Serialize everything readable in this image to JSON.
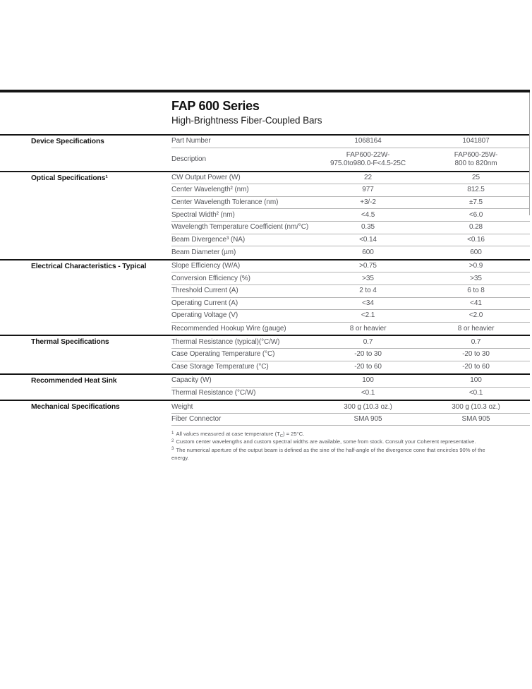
{
  "header": {
    "title": "FAP 600 Series",
    "subtitle": "High-Brightness Fiber-Coupled Bars"
  },
  "table": {
    "sections": [
      {
        "label": "Device Specifications",
        "rows": [
          {
            "param": "Part Number",
            "v1": "1068164",
            "v2": "1041807"
          },
          {
            "param": "Description",
            "v1": "FAP600-22W-\n975.0to980.0-F<4.5-25C",
            "v2": "FAP600-25W-\n800 to 820nm",
            "tall": true
          }
        ]
      },
      {
        "label": "Optical Specifications¹",
        "rows": [
          {
            "param": "CW Output Power (W)",
            "v1": "22",
            "v2": "25"
          },
          {
            "param": "Center Wavelength² (nm)",
            "v1": "977",
            "v2": "812.5"
          },
          {
            "param": "Center Wavelength Tolerance (nm)",
            "v1": "+3/-2",
            "v2": "±7.5"
          },
          {
            "param": "Spectral Width² (nm)",
            "v1": "<4.5",
            "v2": "<6.0"
          },
          {
            "param": "Wavelength Temperature Coefficient (nm/°C)",
            "v1": "0.35",
            "v2": "0.28"
          },
          {
            "param": "Beam Divergence³ (NA)",
            "v1": "<0.14",
            "v2": "<0.16"
          },
          {
            "param": "Beam Diameter (µm)",
            "v1": "600",
            "v2": "600"
          }
        ]
      },
      {
        "label": "Electrical Characteristics - Typical",
        "rows": [
          {
            "param": "Slope Efficiency (W/A)",
            "v1": ">0.75",
            "v2": ">0.9"
          },
          {
            "param": "Conversion Efficiency (%)",
            "v1": ">35",
            "v2": ">35"
          },
          {
            "param": "Threshold Current (A)",
            "v1": "2 to 4",
            "v2": "6 to 8"
          },
          {
            "param": "Operating Current (A)",
            "v1": "<34",
            "v2": "<41"
          },
          {
            "param": "Operating Voltage (V)",
            "v1": "<2.1",
            "v2": "<2.0"
          },
          {
            "param": "Recommended Hookup Wire (gauge)",
            "v1": "8 or heavier",
            "v2": "8 or heavier"
          }
        ]
      },
      {
        "label": "Thermal Specifications",
        "rows": [
          {
            "param": "Thermal Resistance (typical)(°C/W)",
            "v1": "0.7",
            "v2": "0.7"
          },
          {
            "param": "Case Operating Temperature (°C)",
            "v1": "-20 to 30",
            "v2": "-20 to 30"
          },
          {
            "param": "Case Storage Temperature (°C)",
            "v1": "-20 to 60",
            "v2": "-20 to 60"
          }
        ]
      },
      {
        "label": "Recommended Heat Sink",
        "rows": [
          {
            "param": "Capacity (W)",
            "v1": "100",
            "v2": "100"
          },
          {
            "param": "Thermal Resistance (°C/W)",
            "v1": "<0.1",
            "v2": "<0.1"
          }
        ]
      },
      {
        "label": "Mechanical Specifications",
        "last": true,
        "rows": [
          {
            "param": "Weight",
            "v1": "300 g (10.3 oz.)",
            "v2": "300 g (10.3 oz.)"
          },
          {
            "param": "Fiber Connector",
            "v1": "SMA 905",
            "v2": "SMA 905"
          }
        ]
      }
    ]
  },
  "footnotes": [
    {
      "sup": "1",
      "parts": [
        {
          "t": "All values measured at case temperature (T"
        },
        {
          "t": "C",
          "sub": true
        },
        {
          "t": ") = 25°C."
        }
      ]
    },
    {
      "sup": "2",
      "parts": [
        {
          "t": "Custom center wavelengths and custom spectral widths are available, some from stock. Consult your Coherent representative."
        }
      ]
    },
    {
      "sup": "3",
      "parts": [
        {
          "t": "The numerical aperture of the output beam is defined as the sine of the half-angle of the divergence cone that encircles 90% of the energy."
        }
      ]
    }
  ],
  "colors": {
    "rule_black": "#151515",
    "row_line_gray": "#b4b4b4",
    "body_text_gray": "#54555a",
    "heading_black": "#161616"
  }
}
